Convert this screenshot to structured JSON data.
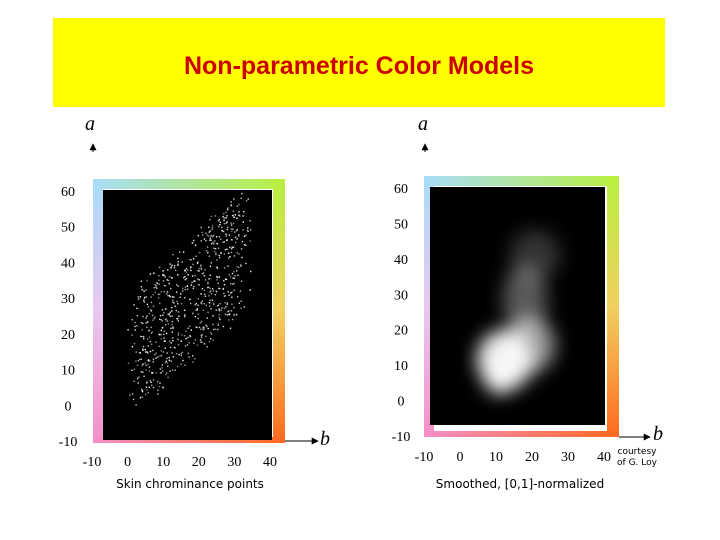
{
  "title": "Non-parametric Color Models",
  "panels": [
    {
      "y_axis_label": "a",
      "x_axis_label": "b",
      "yticks": [
        "60",
        "50",
        "40",
        "30",
        "20",
        "10",
        "0",
        "-10"
      ],
      "xticks": [
        "-10",
        "0",
        "10",
        "20",
        "30",
        "40"
      ],
      "caption": "Skin chrominance points"
    },
    {
      "y_axis_label": "a",
      "x_axis_label": "b",
      "yticks": [
        "60",
        "50",
        "40",
        "30",
        "20",
        "10",
        "0",
        "-10"
      ],
      "xticks": [
        "-10",
        "0",
        "10",
        "20",
        "30",
        "40"
      ],
      "caption": "Smoothed, [0,1]-normalized"
    }
  ],
  "credit": [
    "courtesy",
    "of G. Loy"
  ]
}
